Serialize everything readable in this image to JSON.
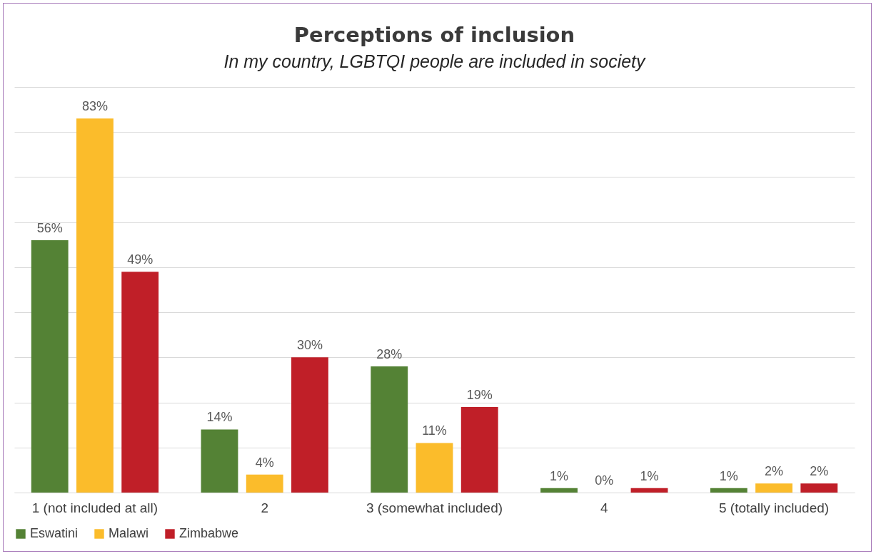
{
  "chart_data": {
    "type": "bar",
    "title": "Perceptions of inclusion",
    "subtitle": "In my country, LGBTQI people are included in society",
    "categories": [
      "1 (not included at all)",
      "2",
      "3 (somewhat included)",
      "4",
      "5 (totally included)"
    ],
    "series": [
      {
        "name": "Eswatini",
        "color": "#548235",
        "values": [
          56,
          14,
          28,
          1,
          1
        ],
        "value_labels": [
          "56%",
          "14%",
          "28%",
          "1%",
          "1%"
        ]
      },
      {
        "name": "Malawi",
        "color": "#fbbc2b",
        "values": [
          83,
          4,
          11,
          0,
          2
        ],
        "value_labels": [
          "83%",
          "4%",
          "11%",
          "0%",
          "2%"
        ]
      },
      {
        "name": "Zimbabwe",
        "color": "#c01f28",
        "values": [
          49,
          30,
          19,
          1,
          2
        ],
        "value_labels": [
          "49%",
          "30%",
          "19%",
          "1%",
          "2%"
        ]
      }
    ],
    "ylim": [
      0,
      90
    ],
    "yticks": [
      0,
      10,
      20,
      30,
      40,
      50,
      60,
      70,
      80,
      90
    ],
    "grid": "y",
    "tick_labels": "x",
    "legend": "bottom"
  }
}
